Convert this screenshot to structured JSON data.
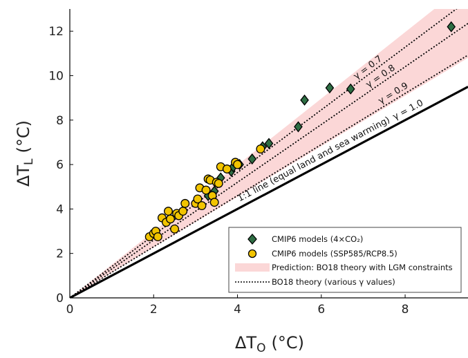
{
  "chart_data": {
    "type": "scatter",
    "xlabel": "ΔT",
    "xlabel_sub": "O",
    "xlabel_unit": "(°C)",
    "ylabel": "ΔT",
    "ylabel_sub": "L",
    "ylabel_unit": "(°C)",
    "xlim": [
      0,
      9.5
    ],
    "ylim": [
      0,
      13
    ],
    "xticks": [
      0,
      2,
      4,
      6,
      8
    ],
    "yticks": [
      0,
      2,
      4,
      6,
      8,
      10,
      12
    ],
    "grid": false,
    "legend_position": "bottom-right",
    "colors": {
      "diamond_fill": "#2e6e44",
      "circle_fill": "#f2c400",
      "band_fill": "#fbd7d7",
      "line": "#000000"
    },
    "series": [
      {
        "name": "CMIP6 models (4×CO₂)",
        "marker": "diamond",
        "x": [
          3.3,
          3.45,
          3.6,
          3.85,
          3.9,
          4.05,
          4.35,
          4.6,
          4.75,
          5.45,
          5.6,
          6.2,
          6.7,
          9.1
        ],
        "y": [
          4.6,
          4.8,
          5.4,
          5.7,
          5.9,
          6.0,
          6.25,
          6.8,
          6.95,
          7.7,
          8.9,
          9.45,
          9.4,
          12.2
        ]
      },
      {
        "name": "CMIP6 models (SSP585/RCP8.5)",
        "marker": "circle",
        "x": [
          1.9,
          2.0,
          2.05,
          2.1,
          2.2,
          2.3,
          2.35,
          2.4,
          2.5,
          2.55,
          2.6,
          2.7,
          2.75,
          3.0,
          3.05,
          3.1,
          3.15,
          3.25,
          3.3,
          3.35,
          3.4,
          3.45,
          3.5,
          3.55,
          3.6,
          3.75,
          3.95,
          4.0,
          4.55
        ],
        "y": [
          2.75,
          2.9,
          3.0,
          2.75,
          3.6,
          3.4,
          3.9,
          3.55,
          3.1,
          3.8,
          3.7,
          3.9,
          4.25,
          4.25,
          4.45,
          4.95,
          4.15,
          4.85,
          5.35,
          5.3,
          4.6,
          4.3,
          5.2,
          5.15,
          5.9,
          5.8,
          6.1,
          6.0,
          6.7
        ]
      }
    ],
    "band": {
      "name": "Prediction: BO18 theory with LGM constraints",
      "x": [
        0,
        9.5
      ],
      "lower": [
        0,
        10.8
      ],
      "upper": [
        0,
        14.2
      ]
    },
    "theory_lines": {
      "name": "BO18 theory (various γ values)",
      "items": [
        {
          "label": "γ = 0.7",
          "slope": 1.41
        },
        {
          "label": "γ = 0.8",
          "slope": 1.3
        },
        {
          "label": "γ = 0.9",
          "slope": 1.15
        }
      ]
    },
    "one_to_one": {
      "slope": 1.0,
      "label": "γ = 1.0",
      "caption": "1:1 line (equal land and sea warming)"
    }
  }
}
